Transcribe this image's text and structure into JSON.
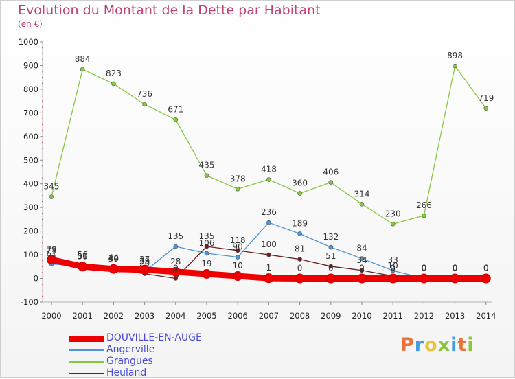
{
  "chart_data": {
    "type": "line",
    "title": "Evolution du Montant de la Dette par Habitant",
    "unit_label": "(en €)",
    "x": [
      "2000",
      "2001",
      "2002",
      "2003",
      "2004",
      "2005",
      "2006",
      "2007",
      "2008",
      "2009",
      "2010",
      "2011",
      "2012",
      "2013",
      "2014"
    ],
    "ylim": [
      -100,
      1000
    ],
    "yticks": [
      "-100",
      "0",
      "100",
      "200",
      "300",
      "400",
      "500",
      "600",
      "700",
      "800",
      "900",
      "1000"
    ],
    "grid": false,
    "legend_position": "bottom-left",
    "series": [
      {
        "name": "DOUVILLE-EN-AUGE",
        "color": "#ee0000",
        "values": [
          79,
          50,
          40,
          37,
          28,
          19,
          10,
          1,
          0,
          0,
          0,
          0,
          0,
          0,
          0
        ],
        "labels": [
          "79",
          "50",
          "40",
          "37",
          "28",
          "19",
          "10",
          "1",
          "0",
          "0",
          "0",
          "0",
          "0",
          "0",
          "0"
        ]
      },
      {
        "name": "Angerville",
        "color": "#4e94d4",
        "values": [
          61,
          51,
          44,
          29,
          135,
          106,
          90,
          236,
          189,
          132,
          84,
          33,
          0,
          0,
          0
        ],
        "labels": [
          "61",
          "51",
          "44",
          "29",
          "135",
          "106",
          "90",
          "236",
          "189",
          "132",
          "84",
          "33",
          "0",
          "0",
          "0"
        ]
      },
      {
        "name": "Grangues",
        "color": "#86c840",
        "values": [
          345,
          884,
          823,
          736,
          671,
          435,
          378,
          418,
          360,
          406,
          314,
          230,
          266,
          898,
          719
        ],
        "labels": [
          "345",
          "884",
          "823",
          "736",
          "671",
          "435",
          "378",
          "418",
          "360",
          "406",
          "314",
          "230",
          "266",
          "898",
          "719"
        ]
      },
      {
        "name": "Heuland",
        "color": "#6b1f1f",
        "values": [
          73,
          56,
          39,
          20,
          0,
          135,
          118,
          100,
          81,
          51,
          34,
          10,
          0,
          0,
          0
        ],
        "labels": [
          "73",
          "56",
          "39",
          "20",
          "0",
          "135",
          "118",
          "100",
          "81",
          "51",
          "34",
          "10",
          "0",
          "0",
          "0"
        ]
      }
    ]
  },
  "logo": {
    "text": "Proxiti",
    "colors": [
      "#e8733a",
      "#3f9de0",
      "#e8c33a",
      "#8cc63f",
      "#3f9de0",
      "#e8733a",
      "#8cc63f"
    ]
  }
}
